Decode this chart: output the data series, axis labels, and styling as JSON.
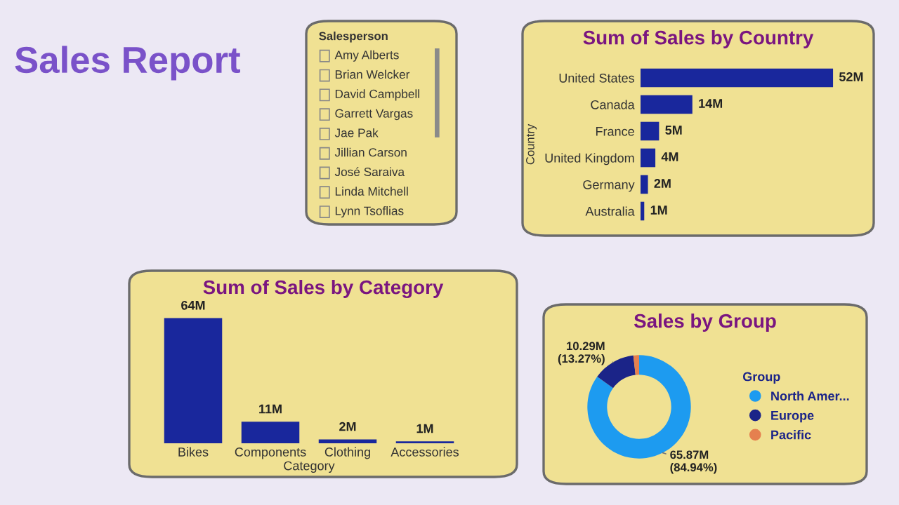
{
  "chart_data": [
    {
      "type": "other",
      "title": "Sales Report"
    },
    {
      "type": "other",
      "title": "Salesperson",
      "annotations": [
        "Amy Alberts",
        "Brian Welcker",
        "David Campbell",
        "Garrett Vargas",
        "Jae Pak",
        "Jillian Carson",
        "José Saraiva",
        "Linda Mitchell",
        "Lynn Tsoflias"
      ]
    },
    {
      "type": "bar",
      "orientation": "horizontal",
      "title": "Sum of Sales by Country",
      "ylabel": "Country",
      "categories": [
        "United States",
        "Canada",
        "France",
        "United Kingdom",
        "Germany",
        "Australia"
      ],
      "values": [
        52,
        14,
        5,
        4,
        2,
        1
      ],
      "value_labels": [
        "52M",
        "14M",
        "5M",
        "4M",
        "2M",
        "1M"
      ],
      "color": "#19279c"
    },
    {
      "type": "bar",
      "title": "Sum of Sales by Category",
      "xlabel": "Category",
      "categories": [
        "Bikes",
        "Components",
        "Clothing",
        "Accessories"
      ],
      "values": [
        64,
        11,
        2,
        1
      ],
      "value_labels": [
        "64M",
        "11M",
        "2M",
        "1M"
      ],
      "color": "#19279c"
    },
    {
      "type": "donut",
      "title": "Sales by Group",
      "legend_title": "Group",
      "legend": "right",
      "categories": [
        "North Amer...",
        "Europe",
        "Pacific"
      ],
      "values": [
        84.94,
        13.27,
        1.79
      ],
      "colors": [
        "#1d9bf0",
        "#1b2488",
        "#e5804f"
      ],
      "value_labels": [
        "65.87M\n(84.94%)",
        "10.29M\n(13.27%)",
        null
      ]
    }
  ]
}
